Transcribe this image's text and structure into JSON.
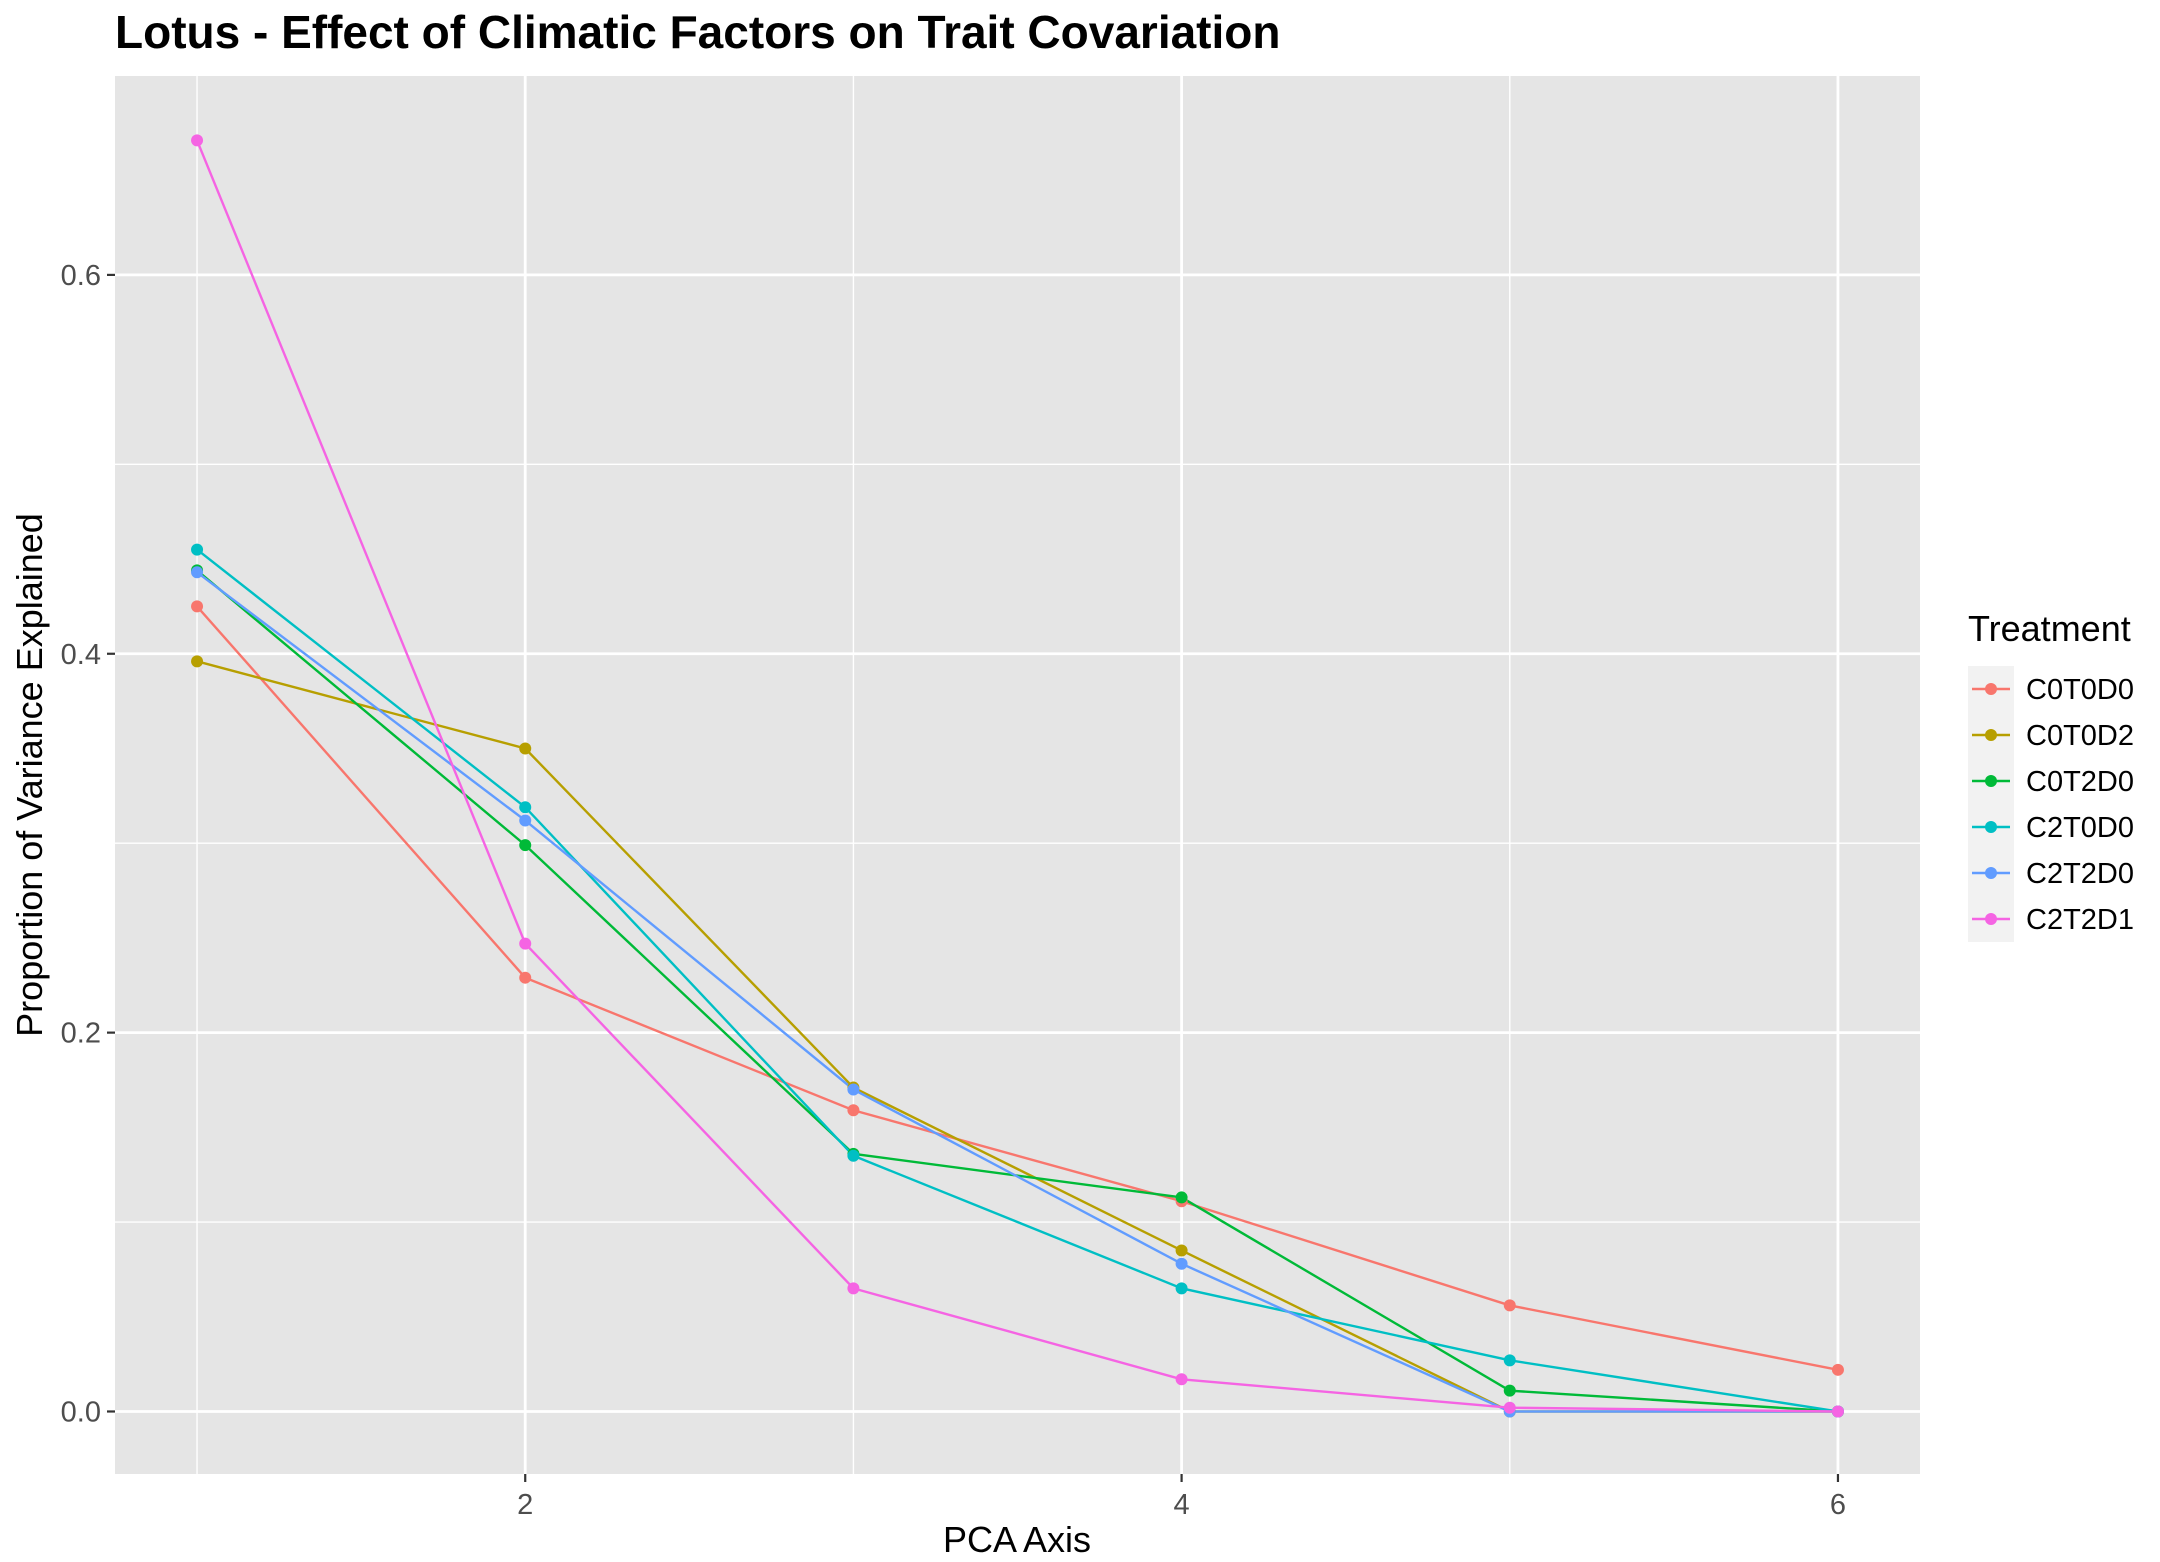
{
  "chart_data": {
    "type": "line",
    "title": "Lotus - Effect of Climatic Factors on Trait Covariation",
    "xlabel": "PCA Axis",
    "ylabel": "Proportion of Variance Explained",
    "x": [
      1,
      2,
      3,
      4,
      5,
      6
    ],
    "xlim": [
      0.75,
      6.25
    ],
    "ylim": [
      -0.033,
      0.705
    ],
    "xticks": [
      2,
      4,
      6
    ],
    "yticks": [
      0.0,
      0.2,
      0.4,
      0.6
    ],
    "xtick_labels": [
      "2",
      "4",
      "6"
    ],
    "ytick_labels": [
      "0.0",
      "0.2",
      "0.4",
      "0.6"
    ],
    "grid": true,
    "legend": {
      "title": "Treatment",
      "position": "right"
    },
    "series": [
      {
        "name": "C0T0D0",
        "color": "#F8766D",
        "values": [
          0.425,
          0.229,
          0.159,
          0.111,
          0.056,
          0.022
        ]
      },
      {
        "name": "C0T0D2",
        "color": "#B79F00",
        "values": [
          0.396,
          0.35,
          0.171,
          0.085,
          0.0,
          0.0
        ]
      },
      {
        "name": "C0T2D0",
        "color": "#00BA38",
        "values": [
          0.444,
          0.299,
          0.136,
          0.113,
          0.011,
          0.0
        ]
      },
      {
        "name": "C2T0D0",
        "color": "#00BFC4",
        "values": [
          0.455,
          0.319,
          0.135,
          0.065,
          0.027,
          0.0
        ]
      },
      {
        "name": "C2T2D0",
        "color": "#619CFF",
        "values": [
          0.443,
          0.312,
          0.17,
          0.078,
          0.0,
          0.0
        ]
      },
      {
        "name": "C2T2D1",
        "color": "#F564E3",
        "values": [
          0.671,
          0.247,
          0.065,
          0.017,
          0.002,
          0.0
        ]
      }
    ]
  }
}
